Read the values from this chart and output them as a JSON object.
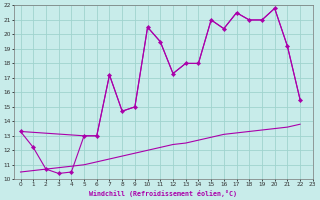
{
  "xlabel": "Windchill (Refroidissement éolien,°C)",
  "xlim": [
    -0.5,
    23
  ],
  "ylim": [
    10,
    22
  ],
  "xticks": [
    0,
    1,
    2,
    3,
    4,
    5,
    6,
    7,
    8,
    9,
    10,
    11,
    12,
    13,
    14,
    15,
    16,
    17,
    18,
    19,
    20,
    21,
    22,
    23
  ],
  "yticks": [
    10,
    11,
    12,
    13,
    14,
    15,
    16,
    17,
    18,
    19,
    20,
    21,
    22
  ],
  "bg_color": "#c8ecea",
  "grid_color": "#a0d4ce",
  "line_color": "#aa00aa",
  "jagged_x": [
    0,
    1,
    2,
    3,
    4,
    5,
    6,
    7,
    8,
    9,
    10,
    11,
    12,
    13,
    14,
    15,
    16,
    17,
    18,
    19,
    20,
    21,
    22
  ],
  "jagged_y": [
    13.3,
    12.2,
    10.7,
    10.4,
    10.5,
    13.0,
    13.0,
    17.2,
    14.7,
    15.0,
    20.5,
    19.5,
    17.3,
    18.0,
    18.0,
    21.0,
    20.4,
    21.5,
    21.0,
    21.0,
    21.8,
    19.2,
    15.5
  ],
  "upper_x": [
    0,
    5,
    6,
    7,
    8,
    9,
    10,
    11,
    12,
    13,
    14,
    15,
    16,
    17,
    18,
    19,
    20,
    21,
    22
  ],
  "upper_y": [
    13.3,
    13.0,
    13.0,
    17.2,
    14.7,
    15.0,
    20.5,
    19.5,
    17.3,
    18.0,
    18.0,
    21.0,
    20.4,
    21.5,
    21.0,
    21.0,
    21.8,
    19.2,
    15.5
  ],
  "lower_x": [
    0,
    1,
    2,
    3,
    4,
    5,
    6,
    7,
    8,
    9,
    10,
    11,
    12,
    13,
    14,
    15,
    16,
    17,
    18,
    19,
    20,
    21,
    22
  ],
  "lower_y": [
    10.5,
    10.6,
    10.7,
    10.8,
    10.9,
    11.0,
    11.2,
    11.4,
    11.6,
    11.8,
    12.0,
    12.2,
    12.4,
    12.5,
    12.7,
    12.9,
    13.1,
    13.2,
    13.3,
    13.4,
    13.5,
    13.6,
    13.8
  ]
}
